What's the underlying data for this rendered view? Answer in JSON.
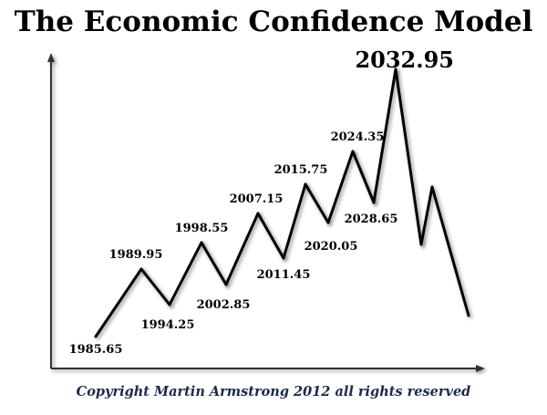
{
  "title": "The Economic Confidence Model",
  "copyright": "Copyright Martin Armstrong 2012 all rights reserved",
  "colors": {
    "line": "#000000",
    "axis": "#333333",
    "text": "#000000",
    "copyright": "#1b2a4d"
  },
  "chart_data": {
    "type": "line",
    "title": "The Economic Confidence Model",
    "xlabel": "",
    "ylabel": "",
    "grid": false,
    "series": [
      {
        "points": [
          {
            "x": 1985.65,
            "label": "1985.65"
          },
          {
            "x": 1989.95,
            "label": "1989.95"
          },
          {
            "x": 1994.25,
            "label": "1994.25"
          },
          {
            "x": 1998.55,
            "label": "1998.55"
          },
          {
            "x": 2002.85,
            "label": "2002.85"
          },
          {
            "x": 2007.15,
            "label": "2007.15"
          },
          {
            "x": 2011.45,
            "label": "2011.45"
          },
          {
            "x": 2015.75,
            "label": "2015.75"
          },
          {
            "x": 2020.05,
            "label": "2020.05"
          },
          {
            "x": 2024.35,
            "label": "2024.35"
          },
          {
            "x": 2028.65,
            "label": "2028.65"
          },
          {
            "x": 2032.95,
            "label": "2032.95"
          }
        ]
      }
    ]
  }
}
